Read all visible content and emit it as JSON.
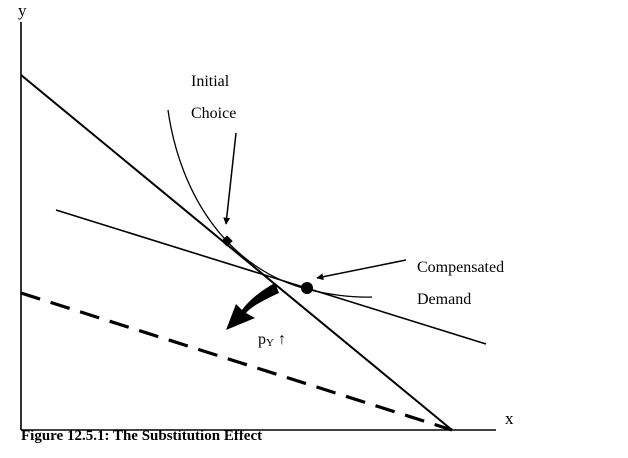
{
  "axes": {
    "y_label": "y",
    "x_label": "x"
  },
  "labels": {
    "initial_line1": "Initial",
    "initial_line2": "Choice",
    "compensated_line1": "Compensated",
    "compensated_line2": "Demand",
    "price_change_base": "p",
    "price_change_sub": "Y",
    "price_change_arrow": "↑"
  },
  "caption": "Figure 12.5.1: The Substitution Effect",
  "colors": {
    "ink": "#000000",
    "background": "#ffffff"
  }
}
